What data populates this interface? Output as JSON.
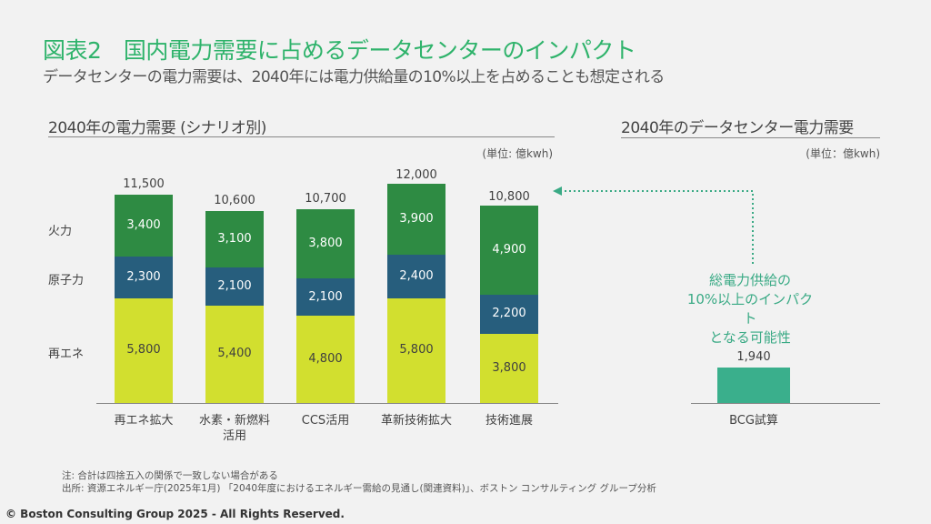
{
  "title": "図表2　国内電力需要に占めるデータセンターのインパクト",
  "subtitle": "データセンターの電力需要は、2040年には電力供給量の10%以上を占めることも想定される",
  "colors": {
    "fire": "#2e8b43",
    "nuclear": "#275e7d",
    "renewable": "#d2df2f",
    "dc": "#3aaf8c",
    "accent": "#3aaa85"
  },
  "chart_data": [
    {
      "type": "bar",
      "stacked": true,
      "title": "2040年の電力需要 (シナリオ別)",
      "unit": "(単位: 億kwh)",
      "categories": [
        "再エネ拡大",
        "水素・新燃料活用",
        "CCS活用",
        "革新技術拡大",
        "技術進展"
      ],
      "category_lines": [
        [
          "再エネ拡大"
        ],
        [
          "水素・新燃料",
          "活用"
        ],
        [
          "CCS活用"
        ],
        [
          "革新技術拡大"
        ],
        [
          "技術進展"
        ]
      ],
      "series": [
        {
          "name": "再エネ",
          "values": [
            5800,
            5400,
            4800,
            5800,
            3800
          ],
          "labels": [
            "5,800",
            "5,400",
            "4,800",
            "5,800",
            "3,800"
          ]
        },
        {
          "name": "原子力",
          "values": [
            2300,
            2100,
            2100,
            2400,
            2200
          ],
          "labels": [
            "2,300",
            "2,100",
            "2,100",
            "2,400",
            "2,200"
          ]
        },
        {
          "name": "火力",
          "values": [
            3400,
            3100,
            3800,
            3900,
            4900
          ],
          "labels": [
            "3,400",
            "3,100",
            "3,800",
            "3,900",
            "4,900"
          ]
        }
      ],
      "totals": [
        11500,
        10600,
        10700,
        12000,
        10800
      ],
      "total_labels": [
        "11,500",
        "10,600",
        "10,700",
        "12,000",
        "10,800"
      ],
      "ylim": [
        0,
        12500
      ]
    },
    {
      "type": "bar",
      "title": "2040年のデータセンター電力需要",
      "unit": "(単位：億kwh)",
      "categories": [
        "BCG試算"
      ],
      "values": [
        1940
      ],
      "labels": [
        "1,940"
      ],
      "annotation": [
        "総電力供給の",
        "10%以上のインパクト",
        "となる可能性"
      ]
    }
  ],
  "notes": [
    "注: 合計は四捨五入の関係で一致しない場合がある",
    "出所: 資源エネルギー庁(2025年1月) 「2040年度におけるエネルギー需給の見通し(関連資料)」、ボストン コンサルティング グループ分析"
  ],
  "copyright": "© Boston Consulting Group 2025 - All Rights Reserved."
}
